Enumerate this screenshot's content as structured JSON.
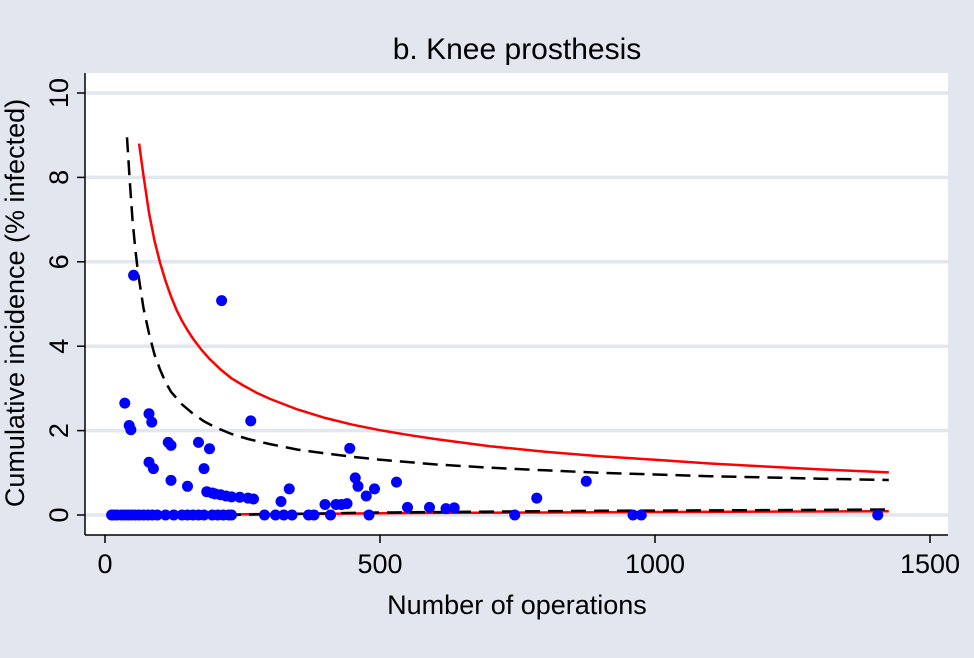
{
  "chart_data": {
    "type": "scatter",
    "title": "b. Knee prosthesis",
    "xlabel": "Number of operations",
    "ylabel": "Cumulative incidence (% infected)",
    "xlim": [
      0,
      1500
    ],
    "ylim": [
      0,
      10
    ],
    "x_ticks": [
      0,
      500,
      1000,
      1500
    ],
    "y_ticks": [
      0,
      2,
      4,
      6,
      8,
      10
    ],
    "grid": "horizontal",
    "legend": "none",
    "colors": {
      "background": "#e1e6ef",
      "plot_area": "#ffffff",
      "grid": "#e1e6ef",
      "points": "#0000ff",
      "limit_99": "#ff0000",
      "limit_95": "#000000"
    },
    "series": [
      {
        "kind": "points",
        "values": [
          [
            12,
            0
          ],
          [
            16,
            0
          ],
          [
            22,
            0
          ],
          [
            30,
            0
          ],
          [
            36,
            0
          ],
          [
            42,
            0
          ],
          [
            48,
            0
          ],
          [
            55,
            0
          ],
          [
            62,
            0
          ],
          [
            70,
            0
          ],
          [
            78,
            0
          ],
          [
            86,
            0
          ],
          [
            95,
            0
          ],
          [
            110,
            0
          ],
          [
            125,
            0
          ],
          [
            140,
            0
          ],
          [
            150,
            0
          ],
          [
            160,
            0
          ],
          [
            170,
            0
          ],
          [
            180,
            0
          ],
          [
            195,
            0
          ],
          [
            205,
            0
          ],
          [
            215,
            0
          ],
          [
            225,
            0
          ],
          [
            230,
            0
          ],
          [
            310,
            0
          ],
          [
            325,
            0
          ],
          [
            340,
            0
          ],
          [
            370,
            0
          ],
          [
            380,
            0
          ],
          [
            410,
            0
          ],
          [
            480,
            0
          ],
          [
            745,
            0
          ],
          [
            960,
            0
          ],
          [
            975,
            0
          ],
          [
            1405,
            0
          ],
          [
            36,
            2.65
          ],
          [
            44,
            2.12
          ],
          [
            47,
            2.02
          ],
          [
            52,
            5.68
          ],
          [
            80,
            2.4
          ],
          [
            80,
            1.25
          ],
          [
            85,
            2.2
          ],
          [
            88,
            1.1
          ],
          [
            115,
            1.72
          ],
          [
            120,
            1.65
          ],
          [
            120,
            0.82
          ],
          [
            150,
            0.68
          ],
          [
            170,
            1.72
          ],
          [
            180,
            1.1
          ],
          [
            185,
            0.55
          ],
          [
            190,
            1.57
          ],
          [
            195,
            0.52
          ],
          [
            200,
            0.5
          ],
          [
            210,
            0.48
          ],
          [
            212,
            5.08
          ],
          [
            220,
            0.45
          ],
          [
            230,
            0.43
          ],
          [
            245,
            0.42
          ],
          [
            260,
            0.4
          ],
          [
            265,
            2.23
          ],
          [
            270,
            0.38
          ],
          [
            290,
            0
          ],
          [
            320,
            0.32
          ],
          [
            335,
            0.62
          ],
          [
            400,
            0.25
          ],
          [
            420,
            0.25
          ],
          [
            430,
            0.25
          ],
          [
            440,
            0.27
          ],
          [
            445,
            1.58
          ],
          [
            455,
            0.88
          ],
          [
            460,
            0.68
          ],
          [
            475,
            0.45
          ],
          [
            490,
            0.62
          ],
          [
            530,
            0.78
          ],
          [
            550,
            0.18
          ],
          [
            590,
            0.18
          ],
          [
            620,
            0.15
          ],
          [
            635,
            0.17
          ],
          [
            785,
            0.4
          ],
          [
            875,
            0.8
          ]
        ]
      },
      {
        "kind": "control-limit-99-upper",
        "style": "solid",
        "values": [
          [
            62,
            8.8
          ],
          [
            70,
            8.04
          ],
          [
            80,
            7.16
          ],
          [
            90,
            6.5
          ],
          [
            100,
            5.98
          ],
          [
            110,
            5.55
          ],
          [
            120,
            5.18
          ],
          [
            130,
            4.86
          ],
          [
            140,
            4.6
          ],
          [
            150,
            4.38
          ],
          [
            160,
            4.18
          ],
          [
            175,
            3.92
          ],
          [
            190,
            3.7
          ],
          [
            210,
            3.45
          ],
          [
            230,
            3.24
          ],
          [
            250,
            3.08
          ],
          [
            275,
            2.9
          ],
          [
            300,
            2.75
          ],
          [
            350,
            2.5
          ],
          [
            400,
            2.3
          ],
          [
            450,
            2.14
          ],
          [
            500,
            2.01
          ],
          [
            550,
            1.9
          ],
          [
            600,
            1.8
          ],
          [
            700,
            1.63
          ],
          [
            800,
            1.5
          ],
          [
            900,
            1.39
          ],
          [
            1000,
            1.31
          ],
          [
            1100,
            1.22
          ],
          [
            1200,
            1.15
          ],
          [
            1300,
            1.08
          ],
          [
            1425,
            1.01
          ]
        ]
      },
      {
        "kind": "control-limit-95-upper",
        "style": "dashed",
        "values": [
          [
            40,
            8.95
          ],
          [
            45,
            7.9
          ],
          [
            50,
            7.0
          ],
          [
            55,
            6.3
          ],
          [
            60,
            5.75
          ],
          [
            70,
            4.9
          ],
          [
            80,
            4.3
          ],
          [
            90,
            3.8
          ],
          [
            100,
            3.45
          ],
          [
            110,
            3.15
          ],
          [
            120,
            2.92
          ],
          [
            140,
            2.62
          ],
          [
            160,
            2.4
          ],
          [
            180,
            2.22
          ],
          [
            200,
            2.08
          ],
          [
            230,
            1.92
          ],
          [
            260,
            1.8
          ],
          [
            300,
            1.68
          ],
          [
            350,
            1.55
          ],
          [
            400,
            1.46
          ],
          [
            450,
            1.38
          ],
          [
            500,
            1.31
          ],
          [
            600,
            1.2
          ],
          [
            700,
            1.12
          ],
          [
            800,
            1.06
          ],
          [
            900,
            1.0
          ],
          [
            1000,
            0.96
          ],
          [
            1100,
            0.92
          ],
          [
            1200,
            0.89
          ],
          [
            1300,
            0.86
          ],
          [
            1425,
            0.83
          ]
        ]
      },
      {
        "kind": "control-limit-99-lower",
        "style": "solid",
        "values": [
          [
            5,
            0
          ],
          [
            200,
            0
          ],
          [
            250,
            0.02
          ],
          [
            400,
            0.03
          ],
          [
            600,
            0.05
          ],
          [
            800,
            0.06
          ],
          [
            1000,
            0.07
          ],
          [
            1200,
            0.08
          ],
          [
            1425,
            0.09
          ]
        ]
      },
      {
        "kind": "control-limit-95-lower",
        "style": "dashed",
        "values": [
          [
            220,
            0
          ],
          [
            300,
            0.02
          ],
          [
            500,
            0.06
          ],
          [
            700,
            0.08
          ],
          [
            900,
            0.1
          ],
          [
            1100,
            0.11
          ],
          [
            1300,
            0.12
          ],
          [
            1425,
            0.13
          ]
        ]
      }
    ]
  }
}
